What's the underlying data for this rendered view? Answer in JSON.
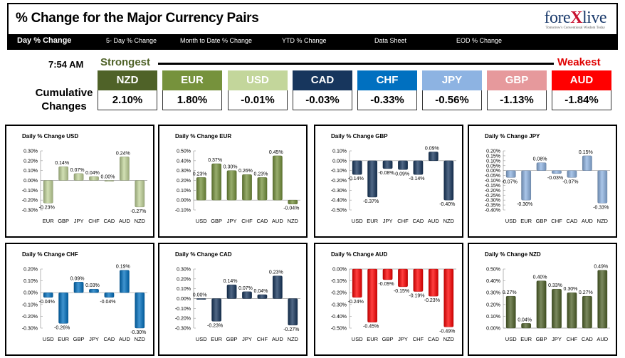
{
  "header": {
    "title": "% Change for the Major Currency Pairs",
    "logo": "forexlive",
    "logo_tagline": "Tomorrow's Conventional Wisdom Today"
  },
  "nav": {
    "items": [
      "Day % Change",
      "5- Day % Change",
      "Month to Date % Change",
      "YTD % Change",
      "Data Sheet",
      "EOD % Change"
    ]
  },
  "time": "7:54 AM",
  "legend": {
    "strongest": "Strongest",
    "weakest": "Weakest",
    "cumulative_label": "Cumulative Changes"
  },
  "pairs": [
    {
      "name": "NZD",
      "value": "2.10%",
      "color": "#4f6228"
    },
    {
      "name": "EUR",
      "value": "1.80%",
      "color": "#76923c"
    },
    {
      "name": "USD",
      "value": "-0.01%",
      "color": "#c3d69b"
    },
    {
      "name": "CAD",
      "value": "-0.03%",
      "color": "#17365d"
    },
    {
      "name": "CHF",
      "value": "-0.33%",
      "color": "#0070c0"
    },
    {
      "name": "JPY",
      "value": "-0.56%",
      "color": "#8db3e2"
    },
    {
      "name": "GBP",
      "value": "-1.13%",
      "color": "#e6999c"
    },
    {
      "name": "AUD",
      "value": "-1.84%",
      "color": "#ff0000"
    }
  ],
  "chart_data": [
    {
      "type": "bar",
      "title": "Daily % Change USD",
      "categories": [
        "EUR",
        "GBP",
        "JPY",
        "CHF",
        "CAD",
        "AUD",
        "NZD"
      ],
      "values": [
        -0.23,
        0.14,
        0.07,
        0.04,
        0.0,
        0.24,
        -0.27
      ],
      "labels": [
        "-0.23%",
        "0.14%",
        "0.07%",
        "0.04%",
        "0.00%",
        "0.24%",
        "-0.27%"
      ],
      "ylim": [
        -0.3,
        0.3
      ],
      "ticks": [
        0.3,
        0.2,
        0.1,
        0.0,
        -0.1,
        -0.2,
        -0.3
      ],
      "tick_labels": [
        "0.30%",
        "0.20%",
        "0.10%",
        "0.00%",
        "-0.10%",
        "-0.20%",
        "-0.30%"
      ],
      "color": "#c3d69b"
    },
    {
      "type": "bar",
      "title": "Daily % Change EUR",
      "categories": [
        "USD",
        "GBP",
        "JPY",
        "CHF",
        "CAD",
        "AUD",
        "NZD"
      ],
      "values": [
        0.23,
        0.37,
        0.3,
        0.26,
        0.23,
        0.45,
        -0.04
      ],
      "labels": [
        "0.23%",
        "0.37%",
        "0.30%",
        "0.26%",
        "0.23%",
        "0.45%",
        "-0.04%"
      ],
      "ylim": [
        -0.1,
        0.5
      ],
      "ticks": [
        0.5,
        0.4,
        0.3,
        0.2,
        0.1,
        0.0,
        -0.1
      ],
      "tick_labels": [
        "0.50%",
        "0.40%",
        "0.30%",
        "0.20%",
        "0.10%",
        "0.00%",
        "-0.10%"
      ],
      "color": "#76923c"
    },
    {
      "type": "bar",
      "title": "Daily % Change GBP",
      "categories": [
        "USD",
        "EUR",
        "JPY",
        "CHF",
        "CAD",
        "AUD",
        "NZD"
      ],
      "values": [
        -0.14,
        -0.37,
        -0.08,
        -0.09,
        -0.14,
        0.09,
        -0.4
      ],
      "labels": [
        "-0.14%",
        "-0.37%",
        "-0.08%",
        "-0.09%",
        "-0.14%",
        "0.09%",
        "-0.40%"
      ],
      "ylim": [
        -0.5,
        0.1
      ],
      "ticks": [
        0.1,
        0.0,
        -0.1,
        -0.2,
        -0.3,
        -0.4,
        -0.5
      ],
      "tick_labels": [
        "0.10%",
        "0.00%",
        "-0.10%",
        "-0.20%",
        "-0.30%",
        "-0.40%",
        "-0.50%"
      ],
      "color": "#17365d"
    },
    {
      "type": "bar",
      "title": "Daily % Change JPY",
      "categories": [
        "USD",
        "EUR",
        "GBP",
        "CHF",
        "CAD",
        "AUD",
        "NZD"
      ],
      "values": [
        -0.07,
        -0.3,
        0.08,
        -0.03,
        -0.07,
        0.15,
        -0.33
      ],
      "labels": [
        "-0.07%",
        "-0.30%",
        "0.08%",
        "-0.03%",
        "-0.07%",
        "0.15%",
        "-0.33%"
      ],
      "ylim": [
        -0.4,
        0.2
      ],
      "ticks": [
        0.2,
        0.15,
        0.1,
        0.05,
        0.0,
        -0.05,
        -0.1,
        -0.15,
        -0.2,
        -0.25,
        -0.3,
        -0.35,
        -0.4
      ],
      "tick_labels": [
        "0.20%",
        "0.15%",
        "0.10%",
        "0.05%",
        "0.00%",
        "-0.05%",
        "-0.10%",
        "-0.15%",
        "-0.20%",
        "-0.25%",
        "-0.30%",
        "-0.35%",
        "-0.40%"
      ],
      "color": "#8db3e2"
    },
    {
      "type": "bar",
      "title": "Daily % Change CHF",
      "categories": [
        "USD",
        "EUR",
        "GBP",
        "JPY",
        "CAD",
        "AUD",
        "NZD"
      ],
      "values": [
        -0.04,
        -0.26,
        0.09,
        0.03,
        -0.04,
        0.19,
        -0.3
      ],
      "labels": [
        "-0.04%",
        "-0.26%",
        "0.09%",
        "0.03%",
        "-0.04%",
        "0.19%",
        "-0.30%"
      ],
      "ylim": [
        -0.3,
        0.2
      ],
      "ticks": [
        0.2,
        0.1,
        0.0,
        -0.1,
        -0.2,
        -0.3
      ],
      "tick_labels": [
        "0.20%",
        "0.10%",
        "0.00%",
        "-0.10%",
        "-0.20%",
        "-0.30%"
      ],
      "color": "#0070c0"
    },
    {
      "type": "bar",
      "title": "Daily % Change CAD",
      "categories": [
        "USD",
        "EUR",
        "GBP",
        "JPY",
        "CHF",
        "AUD",
        "NZD"
      ],
      "values": [
        0.0,
        -0.23,
        0.14,
        0.07,
        0.04,
        0.23,
        -0.27
      ],
      "labels": [
        "0.00%",
        "-0.23%",
        "0.14%",
        "0.07%",
        "0.04%",
        "0.23%",
        "-0.27%"
      ],
      "ylim": [
        -0.3,
        0.3
      ],
      "ticks": [
        0.3,
        0.2,
        0.1,
        0.0,
        -0.1,
        -0.2,
        -0.3
      ],
      "tick_labels": [
        "0.30%",
        "0.20%",
        "0.10%",
        "0.00%",
        "-0.10%",
        "-0.20%",
        "-0.30%"
      ],
      "color": "#17365d"
    },
    {
      "type": "bar",
      "title": "Daily % Change AUD",
      "categories": [
        "USD",
        "EUR",
        "GBP",
        "JPY",
        "CHF",
        "CAD",
        "NZD"
      ],
      "values": [
        -0.24,
        -0.45,
        -0.09,
        -0.15,
        -0.19,
        -0.23,
        -0.49
      ],
      "labels": [
        "-0.24%",
        "-0.45%",
        "-0.09%",
        "-0.15%",
        "-0.19%",
        "-0.23%",
        "-0.49%"
      ],
      "ylim": [
        -0.5,
        0.0
      ],
      "ticks": [
        0.0,
        -0.1,
        -0.2,
        -0.3,
        -0.4,
        -0.5
      ],
      "tick_labels": [
        "0.00%",
        "-0.10%",
        "-0.20%",
        "-0.30%",
        "-0.40%",
        "-0.50%"
      ],
      "color": "#ff0000"
    },
    {
      "type": "bar",
      "title": "Daily % Change NZD",
      "categories": [
        "USD",
        "EUR",
        "GBP",
        "JPY",
        "CHF",
        "CAD",
        "AUD"
      ],
      "values": [
        0.27,
        0.04,
        0.4,
        0.33,
        0.3,
        0.27,
        0.49
      ],
      "labels": [
        "0.27%",
        "0.04%",
        "0.40%",
        "0.33%",
        "0.30%",
        "0.27%",
        "0.49%"
      ],
      "ylim": [
        0.0,
        0.5
      ],
      "ticks": [
        0.5,
        0.4,
        0.3,
        0.2,
        0.1,
        0.0
      ],
      "tick_labels": [
        "0.50%",
        "0.40%",
        "0.30%",
        "0.20%",
        "0.10%",
        "0.00%"
      ],
      "color": "#4f6228"
    }
  ]
}
